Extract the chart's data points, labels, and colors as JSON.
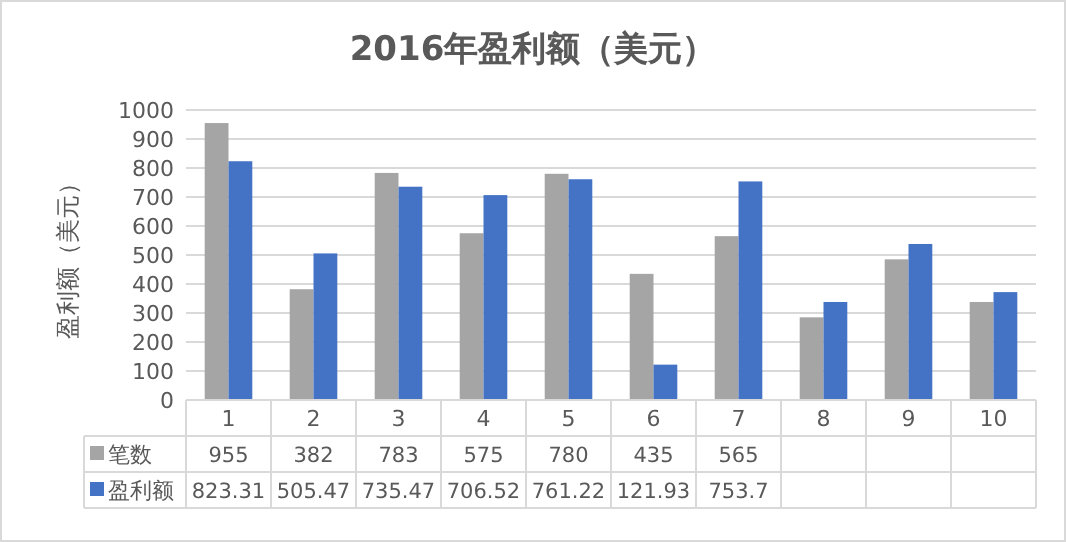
{
  "chart_data": {
    "type": "bar",
    "title": "2016年盈利额（美元）",
    "ylabel": "盈利额（美元）",
    "categories": [
      "1",
      "2",
      "3",
      "4",
      "5",
      "6",
      "7",
      "8",
      "9",
      "10"
    ],
    "series": [
      {
        "name": "笔数",
        "color": "#a5a5a5",
        "values": [
          955,
          382,
          783,
          575,
          780,
          435,
          565,
          285,
          485,
          338
        ],
        "value_labels": [
          "955",
          "382",
          "783",
          "575",
          "780",
          "435",
          "565",
          null,
          null,
          null
        ]
      },
      {
        "name": "盈利额",
        "color": "#4472c4",
        "values": [
          823.31,
          505.47,
          735.47,
          706.52,
          761.22,
          121.93,
          753.7,
          338,
          538,
          372
        ],
        "value_labels": [
          "823.31",
          "505.47",
          "735.47",
          "706.52",
          "761.22",
          "121.93",
          "753.7",
          null,
          null,
          null
        ]
      }
    ],
    "ylim": [
      0,
      1000
    ],
    "yticks": [
      0,
      100,
      200,
      300,
      400,
      500,
      600,
      700,
      800,
      900,
      1000
    ],
    "grid": "y",
    "legend": "bottom"
  }
}
